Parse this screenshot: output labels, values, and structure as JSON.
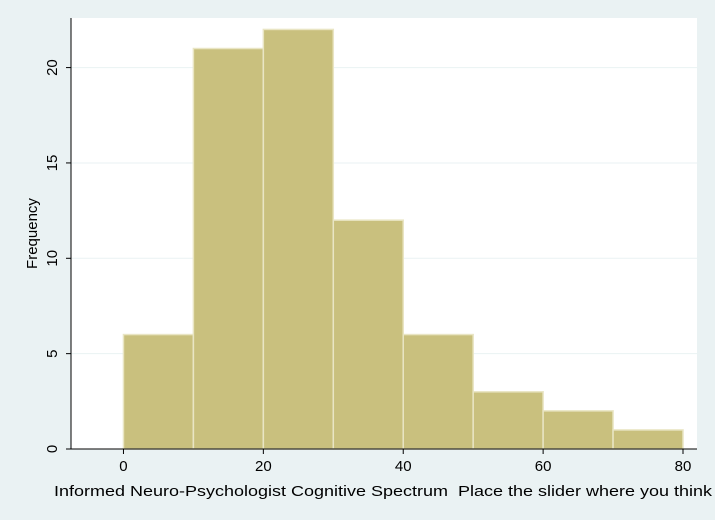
{
  "chart_data": {
    "type": "bar",
    "subtype": "histogram",
    "bins": [
      {
        "from": 0,
        "to": 10,
        "count": 6
      },
      {
        "from": 10,
        "to": 20,
        "count": 21
      },
      {
        "from": 20,
        "to": 30,
        "count": 22
      },
      {
        "from": 30,
        "to": 40,
        "count": 12
      },
      {
        "from": 40,
        "to": 50,
        "count": 6
      },
      {
        "from": 50,
        "to": 60,
        "count": 3
      },
      {
        "from": 60,
        "to": 70,
        "count": 2
      },
      {
        "from": 70,
        "to": 80,
        "count": 1
      }
    ],
    "xlabel": "Informed Neuro-Psychologist Cognitive Spectrum  Place the slider where you think",
    "ylabel": "Frequency",
    "xticks": [
      0,
      20,
      40,
      60,
      80
    ],
    "yticks": [
      0,
      5,
      10,
      15,
      20
    ],
    "xlim": [
      -7.5,
      82
    ],
    "ylim": [
      0,
      22.6
    ],
    "grid": true,
    "legend": "none",
    "colors": {
      "bar_fill": "#c9c07e",
      "bar_stroke": "#e9e5c4",
      "plot_bg": "#ffffff",
      "outer_bg": "#eaf2f3",
      "grid": "#eaf2f3",
      "axis": "#000000"
    }
  }
}
